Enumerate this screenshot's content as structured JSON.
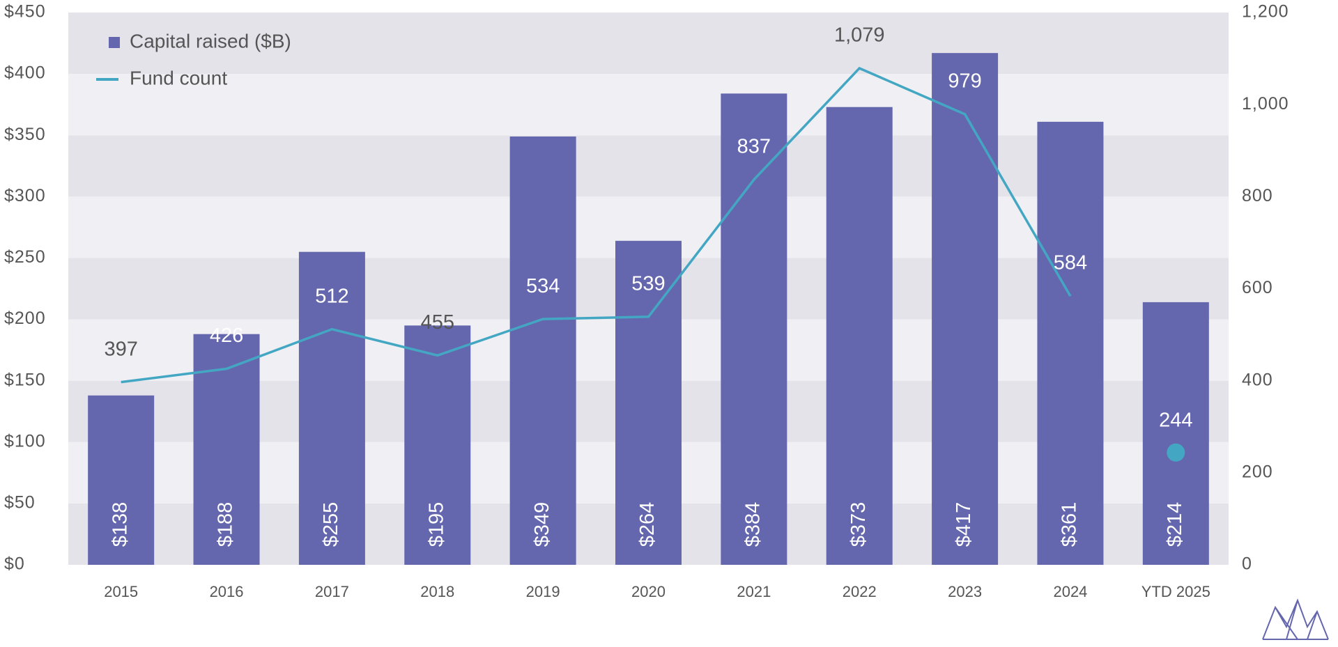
{
  "chart_data": {
    "type": "bar_line",
    "categories": [
      "2015",
      "2016",
      "2017",
      "2018",
      "2019",
      "2020",
      "2021",
      "2022",
      "2023",
      "2024",
      "YTD 2025"
    ],
    "series": [
      {
        "name": "Capital raised ($B)",
        "type": "bar",
        "color": "#6567ae",
        "values": [
          138,
          188,
          255,
          195,
          349,
          264,
          384,
          373,
          417,
          361,
          214
        ],
        "value_labels": [
          "$138",
          "$188",
          "$255",
          "$195",
          "$349",
          "$264",
          "$384",
          "$373",
          "$417",
          "$361",
          "$214"
        ]
      },
      {
        "name": "Fund count",
        "type": "line",
        "axis": "y2",
        "color": "#43a7c4",
        "values": [
          397,
          426,
          512,
          455,
          534,
          539,
          837,
          1079,
          979,
          584,
          244
        ],
        "value_labels": [
          "397",
          "426",
          "512",
          "455",
          "534",
          "539",
          "837",
          "1,079",
          "979",
          "584",
          "244"
        ],
        "isolated_last_point": true
      }
    ],
    "ylim": [
      0,
      450
    ],
    "yticks": [
      {
        "value": 0,
        "label": "$0"
      },
      {
        "value": 50,
        "label": "$50"
      },
      {
        "value": 100,
        "label": "$100"
      },
      {
        "value": 150,
        "label": "$150"
      },
      {
        "value": 200,
        "label": "$200"
      },
      {
        "value": 250,
        "label": "$250"
      },
      {
        "value": 300,
        "label": "$300"
      },
      {
        "value": 350,
        "label": "$350"
      },
      {
        "value": 400,
        "label": "$400"
      },
      {
        "value": 450,
        "label": "$450"
      }
    ],
    "y2lim": [
      0,
      1200
    ],
    "y2ticks": [
      0,
      200,
      400,
      600,
      800,
      {
        "value": 1000,
        "label": "1,000"
      },
      {
        "value": 1200,
        "label": "1,200"
      }
    ],
    "banded_background": true,
    "legend": "top-left"
  }
}
